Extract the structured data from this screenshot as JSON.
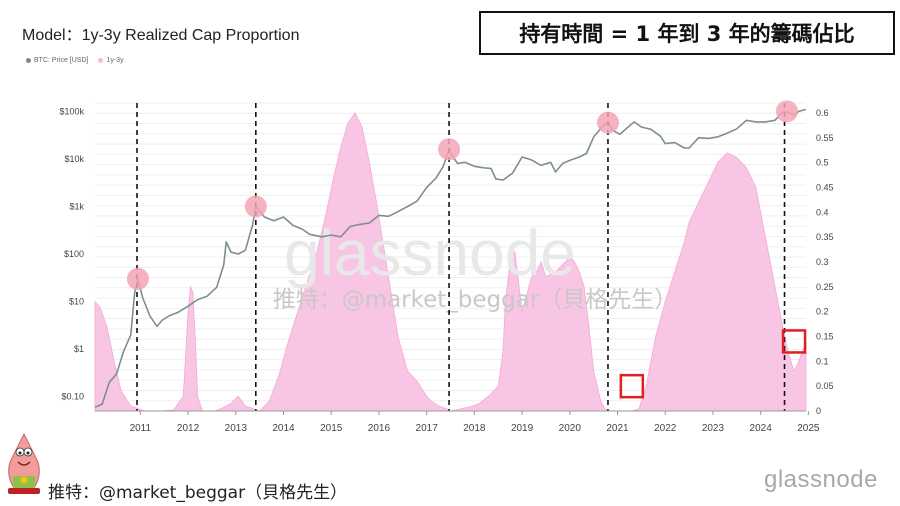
{
  "model_title": "Model：1y-3y Realized Cap Proportion",
  "headline": "持有時間 = 1 年到 3 年的籌碼佔比",
  "legend": [
    {
      "label": "BTC: Price [USD]",
      "color": "#7a8a8a"
    },
    {
      "label": "1y-3y",
      "color": "#f7b9dd"
    }
  ],
  "watermark": {
    "logo": "glassnode",
    "credit": "推特：@market_beggar（貝格先生）"
  },
  "footer": {
    "credit": "推特：@market_beggar（貝格先生）",
    "logo": "glassnode"
  },
  "colors": {
    "price_line": "#7d8f8f",
    "proportion_area": "#f8c6e4",
    "marker_circle": "#f3a5b5",
    "vline": "#111111",
    "highlight_box": "#e02020"
  },
  "chart_data": {
    "type": "area",
    "x_axis": {
      "labels": [
        "2011",
        "2012",
        "2013",
        "2014",
        "2015",
        "2016",
        "2017",
        "2018",
        "2019",
        "2020",
        "2021",
        "2022",
        "2023",
        "2024",
        "2025"
      ],
      "range": [
        2010.55,
        2025.45
      ]
    },
    "y_left": {
      "scale": "log",
      "ticks": [
        "$0.10",
        "$1",
        "$10",
        "$100",
        "$1k",
        "$10k",
        "$100k"
      ],
      "range": [
        0.05,
        150000
      ]
    },
    "y_right": {
      "scale": "linear",
      "ticks": [
        "0",
        "0.05",
        "0.1",
        "0.15",
        "0.2",
        "0.25",
        "0.3",
        "0.35",
        "0.4",
        "0.45",
        "0.5",
        "0.55",
        "0.6"
      ],
      "range": [
        0,
        0.62
      ]
    },
    "series": [
      {
        "name": "1y-3y",
        "axis": "right",
        "x": [
          2010.55,
          2010.65,
          2010.8,
          2010.95,
          2011.1,
          2011.3,
          2011.45,
          2011.6,
          2011.9,
          2012.2,
          2012.4,
          2012.5,
          2012.55,
          2012.6,
          2012.65,
          2012.7,
          2012.8,
          2012.9,
          2013.05,
          2013.2,
          2013.4,
          2013.55,
          2013.7,
          2013.85,
          2014.0,
          2014.2,
          2014.4,
          2014.6,
          2014.8,
          2015.0,
          2015.2,
          2015.4,
          2015.55,
          2015.7,
          2015.85,
          2016.0,
          2016.15,
          2016.3,
          2016.45,
          2016.6,
          2016.75,
          2016.9,
          2017.1,
          2017.3,
          2017.5,
          2017.6,
          2017.75,
          2017.9,
          2018.0,
          2018.2,
          2018.4,
          2018.6,
          2018.8,
          2019.0,
          2019.1,
          2019.15,
          2019.25,
          2019.35,
          2019.5,
          2019.7,
          2019.8,
          2019.9,
          2020.0,
          2020.2,
          2020.4,
          2020.5,
          2020.6,
          2020.7,
          2020.8,
          2020.9,
          2021.0,
          2021.15,
          2021.25,
          2021.35,
          2021.5,
          2021.65,
          2021.8,
          2021.95,
          2022.1,
          2022.3,
          2022.5,
          2022.7,
          2022.9,
          2023.0,
          2023.2,
          2023.4,
          2023.6,
          2023.8,
          2024.0,
          2024.2,
          2024.4,
          2024.6,
          2024.8,
          2024.9,
          2025.0,
          2025.1,
          2025.2,
          2025.3,
          2025.45
        ],
        "values": [
          0.22,
          0.21,
          0.17,
          0.1,
          0.04,
          0.01,
          0.005,
          0.0,
          0.0,
          0.002,
          0.03,
          0.2,
          0.25,
          0.24,
          0.15,
          0.03,
          0.0,
          0.0,
          0.0,
          0.005,
          0.015,
          0.03,
          0.01,
          0.005,
          0.0,
          0.02,
          0.07,
          0.14,
          0.2,
          0.26,
          0.32,
          0.4,
          0.47,
          0.53,
          0.58,
          0.6,
          0.57,
          0.5,
          0.42,
          0.33,
          0.24,
          0.15,
          0.08,
          0.06,
          0.03,
          0.02,
          0.01,
          0.005,
          0.0,
          0.004,
          0.008,
          0.015,
          0.03,
          0.05,
          0.12,
          0.22,
          0.3,
          0.32,
          0.2,
          0.27,
          0.28,
          0.3,
          0.27,
          0.28,
          0.3,
          0.31,
          0.3,
          0.28,
          0.25,
          0.17,
          0.08,
          0.02,
          0.002,
          0.0,
          0.0,
          0.0,
          0.0,
          0.004,
          0.05,
          0.15,
          0.22,
          0.28,
          0.34,
          0.38,
          0.42,
          0.46,
          0.5,
          0.52,
          0.51,
          0.49,
          0.45,
          0.35,
          0.25,
          0.2,
          0.15,
          0.11,
          0.08,
          0.1,
          0.14
        ]
      },
      {
        "name": "BTC: Price [USD]",
        "axis": "left",
        "x": [
          2010.55,
          2010.7,
          2010.85,
          2011.0,
          2011.15,
          2011.3,
          2011.38,
          2011.45,
          2011.55,
          2011.7,
          2011.85,
          2011.95,
          2012.1,
          2012.3,
          2012.5,
          2012.7,
          2012.9,
          2013.1,
          2013.25,
          2013.3,
          2013.4,
          2013.55,
          2013.7,
          2013.85,
          2013.92,
          2014.0,
          2014.1,
          2014.3,
          2014.5,
          2014.7,
          2014.9,
          2015.05,
          2015.3,
          2015.5,
          2015.7,
          2015.9,
          2016.1,
          2016.3,
          2016.5,
          2016.7,
          2016.9,
          2017.1,
          2017.3,
          2017.5,
          2017.7,
          2017.85,
          2017.97,
          2018.05,
          2018.15,
          2018.3,
          2018.5,
          2018.7,
          2018.85,
          2018.95,
          2019.1,
          2019.3,
          2019.5,
          2019.7,
          2019.9,
          2020.1,
          2020.2,
          2020.35,
          2020.5,
          2020.7,
          2020.85,
          2021.0,
          2021.2,
          2021.3,
          2021.4,
          2021.55,
          2021.7,
          2021.85,
          2022.0,
          2022.2,
          2022.4,
          2022.5,
          2022.7,
          2022.9,
          2023.0,
          2023.2,
          2023.4,
          2023.6,
          2023.8,
          2024.0,
          2024.2,
          2024.4,
          2024.6,
          2024.8,
          2024.95,
          2025.05,
          2025.2,
          2025.3,
          2025.45
        ],
        "values": [
          0.06,
          0.07,
          0.2,
          0.3,
          0.9,
          2,
          15,
          30,
          12,
          5,
          3,
          4,
          5,
          6,
          8,
          11,
          13,
          20,
          60,
          180,
          110,
          100,
          120,
          400,
          1000,
          800,
          600,
          500,
          600,
          400,
          330,
          260,
          230,
          250,
          230,
          380,
          420,
          450,
          650,
          620,
          780,
          1000,
          1300,
          2500,
          4000,
          7000,
          16000,
          11000,
          8000,
          8500,
          7000,
          6500,
          6300,
          3800,
          3600,
          5000,
          11000,
          9500,
          7300,
          8500,
          5300,
          8000,
          9300,
          11000,
          13000,
          29000,
          50000,
          58000,
          40000,
          33000,
          45000,
          60000,
          47000,
          42000,
          30000,
          21000,
          22000,
          17000,
          17000,
          28000,
          27000,
          29000,
          35000,
          43000,
          65000,
          60000,
          60000,
          65000,
          95000,
          98000,
          84000,
          100000,
          110000
        ]
      }
    ],
    "cycle_lines_x": [
      2011.43,
      2013.92,
      2017.97,
      2021.3,
      2025.0
    ],
    "peak_markers": [
      {
        "x": 2011.45,
        "y": 30
      },
      {
        "x": 2013.92,
        "y": 1000
      },
      {
        "x": 2017.97,
        "y": 16000
      },
      {
        "x": 2021.3,
        "y": 58000
      },
      {
        "x": 2025.05,
        "y": 100000
      }
    ],
    "highlight_boxes": [
      {
        "x": 2021.8,
        "y": 0.05
      },
      {
        "x": 2025.2,
        "y": 0.14
      }
    ]
  }
}
